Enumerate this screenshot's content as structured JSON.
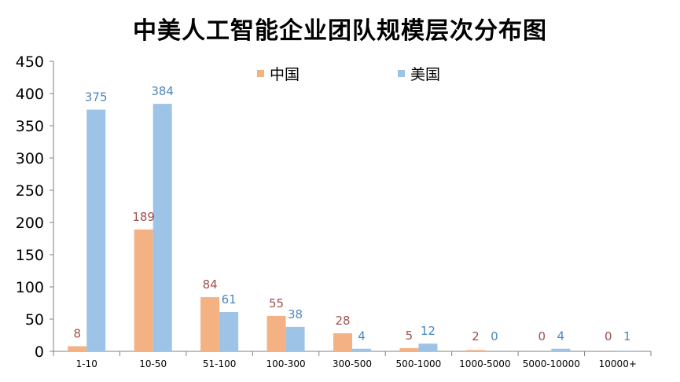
{
  "colors": {
    "china": "#F4B183",
    "usa": "#9DC3E6",
    "china_label": "#A0504E",
    "usa_label": "#4F86BE"
  },
  "chart_data": {
    "type": "bar",
    "title": "中美人工智能企业团队规模层次分布图",
    "xlabel": "",
    "ylabel": "",
    "ylim": [
      0,
      450
    ],
    "yticks": [
      0,
      50,
      100,
      150,
      200,
      250,
      300,
      350,
      400,
      450
    ],
    "grid": false,
    "legend_position": "top-center",
    "categories": [
      "1-10",
      "10-50",
      "51-100",
      "100-300",
      "300-500",
      "500-1000",
      "1000-5000",
      "5000-10000",
      "10000+"
    ],
    "series": [
      {
        "name": "中国",
        "values": [
          8,
          189,
          84,
          55,
          28,
          5,
          2,
          0,
          0
        ],
        "labels": [
          "8",
          "189",
          "84",
          "55",
          "28",
          "5",
          "2",
          "0",
          "0"
        ]
      },
      {
        "name": "美国",
        "values": [
          375,
          384,
          61,
          38,
          4,
          12,
          0,
          4,
          1
        ],
        "labels": [
          "375",
          "384",
          "61",
          "38",
          "4",
          "12",
          "0",
          "4",
          "1"
        ]
      }
    ]
  }
}
